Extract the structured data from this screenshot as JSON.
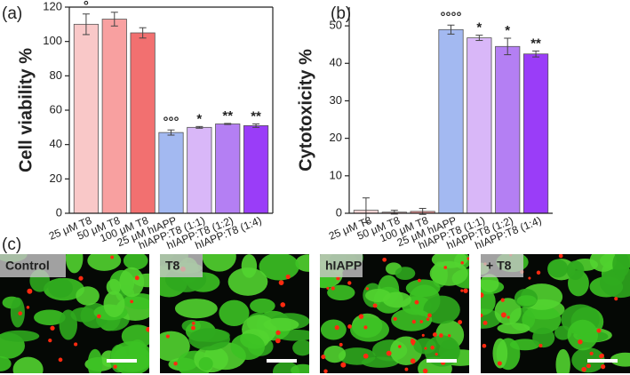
{
  "chart_data": [
    {
      "type": "bar",
      "panel_label": "(a)",
      "y_label": "Cell viability %",
      "categories": [
        "25 μM T8",
        "50 μM T8",
        "100 μM T8",
        "25 μM hIAPP",
        "hIAPP:T8 (1:1)",
        "hIAPP:T8 (1:2)",
        "hIAPP:T8 (1:4)"
      ],
      "values": [
        110,
        113,
        105,
        47,
        50,
        52,
        51
      ],
      "errors": [
        6,
        4,
        3,
        1.5,
        0.5,
        0.3,
        1
      ],
      "annotations": [
        "°",
        null,
        null,
        "°°°",
        "*",
        "**",
        "**"
      ],
      "colors": [
        "#f9c8c8",
        "#f8a0a0",
        "#f27070",
        "#a3b9f1",
        "#d9b7f8",
        "#b47ff3",
        "#9a3df8"
      ],
      "ylim": [
        0,
        120
      ],
      "yticks": [
        0,
        20,
        40,
        60,
        80,
        100,
        120
      ]
    },
    {
      "type": "bar",
      "panel_label": "(b)",
      "y_label": "Cytotoxicity %",
      "categories": [
        "25 μM T8",
        "50 μM T8",
        "100 μM T8",
        "25 μM hIAPP",
        "hIAPP:T8 (1:1)",
        "hIAPP:T8 (1:2)",
        "hIAPP:T8 (1:4)"
      ],
      "values": [
        0.8,
        0.3,
        0.5,
        49,
        46.8,
        44.5,
        42.5
      ],
      "errors": [
        3.3,
        0.5,
        0.8,
        1.2,
        0.7,
        2.2,
        0.8
      ],
      "annotations": [
        null,
        null,
        null,
        "°°°°",
        "*",
        "*",
        "**"
      ],
      "colors": [
        "#fbd6d6",
        "#f9c0c0",
        "#f59a9a",
        "#a3b9f1",
        "#d9b7f8",
        "#b47ff3",
        "#9a3df8"
      ],
      "ylim": [
        0,
        55
      ],
      "yticks": [
        0,
        10,
        20,
        30,
        40,
        50
      ]
    }
  ],
  "images": {
    "panel_label": "(c)",
    "labels": [
      "Control",
      "T8",
      "hIAPP",
      "+ T8"
    ]
  }
}
